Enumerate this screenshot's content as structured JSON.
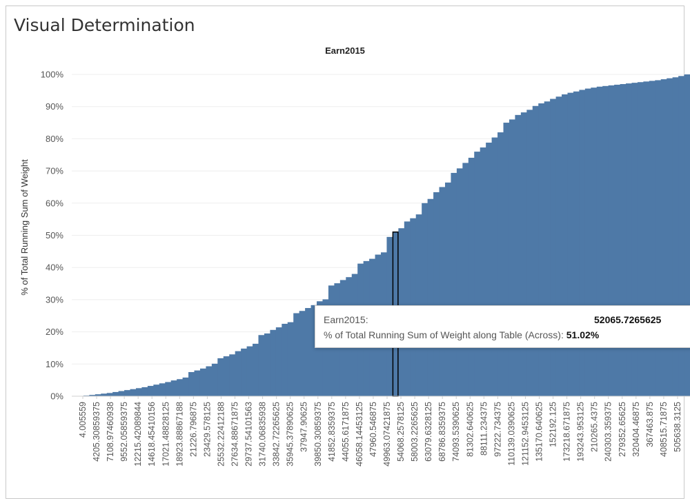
{
  "dashboard_title": "Visual Determination",
  "tooltip": {
    "field_label": "Earn2015:",
    "field_value": "52065.7265625",
    "measure_label": "% of Total Running Sum of Weight along Table (Across):",
    "measure_value": "51.02%"
  },
  "colors": {
    "bar": "#4e79a7",
    "highlight_outline": "#000000",
    "grid": "#eeeeee"
  },
  "chart_data": {
    "type": "area",
    "title": "Earn2015",
    "xlabel": "",
    "ylabel": "% of Total Running Sum of Weight",
    "ylim": [
      0,
      100
    ],
    "y_ticks": [
      "0%",
      "10%",
      "20%",
      "30%",
      "40%",
      "50%",
      "60%",
      "70%",
      "80%",
      "90%",
      "100%"
    ],
    "x_tick_labels": [
      "4.005559",
      "4205.30859375",
      "7108.97460938",
      "9552.05859375",
      "12215.42089844",
      "14618.45410156",
      "17021.48828125",
      "18923.88867188",
      "21226.796875",
      "23429.578125",
      "25532.22412188",
      "27634.88671875",
      "29737.54101563",
      "31740.06835938",
      "33842.72265625",
      "35945.37890625",
      "37947.90625",
      "39850.30859375",
      "41852.8359375",
      "44055.6171875",
      "46058.14453125",
      "47960.546875",
      "49963.07421875",
      "54068.2578125",
      "58003.2265625",
      "63079.6328125",
      "68786.8359375",
      "74093.5390625",
      "81302.640625",
      "88111.234375",
      "97222.734375",
      "110139.0390625",
      "121152.9453125",
      "135170.640625",
      "152192.125",
      "173218.671875",
      "193243.953125",
      "210265.4375",
      "240303.359375",
      "279352.65625",
      "320404.46875",
      "367463.875",
      "408515.71875",
      "505638.3125"
    ],
    "grid": true,
    "highlight": {
      "x": "52065.7265625",
      "y": 51.02
    },
    "cumulative_percent": [
      0,
      0.1,
      0.2,
      0.4,
      0.6,
      0.8,
      1.0,
      1.3,
      1.6,
      1.9,
      2.2,
      2.5,
      2.8,
      3.2,
      3.6,
      4.0,
      4.4,
      4.9,
      5.3,
      5.8,
      7.5,
      8.0,
      8.6,
      9.3,
      10.1,
      11.8,
      12.4,
      13.0,
      14.0,
      14.8,
      15.5,
      16.3,
      19.0,
      19.5,
      20.6,
      21.4,
      22.5,
      23.0,
      25.8,
      26.5,
      27.4,
      28.3,
      29.5,
      30.1,
      34.4,
      35.1,
      36.1,
      37.0,
      38.0,
      41.2,
      42.0,
      42.7,
      44.0,
      44.7,
      49.5,
      51.02,
      52.2,
      54.3,
      55.3,
      56.5,
      60.0,
      61.3,
      63.4,
      65.0,
      66.4,
      69.4,
      70.8,
      72.5,
      74.1,
      76.0,
      77.3,
      78.8,
      80.4,
      82.0,
      85.0,
      86.0,
      87.4,
      88.2,
      89.0,
      90.2,
      91.0,
      91.6,
      92.4,
      93.1,
      93.8,
      94.3,
      94.7,
      95.2,
      95.6,
      95.9,
      96.2,
      96.4,
      96.6,
      96.8,
      97.0,
      97.2,
      97.4,
      97.6,
      97.8,
      98.0,
      98.2,
      98.5,
      98.8,
      99.1,
      99.5,
      100.0
    ]
  }
}
